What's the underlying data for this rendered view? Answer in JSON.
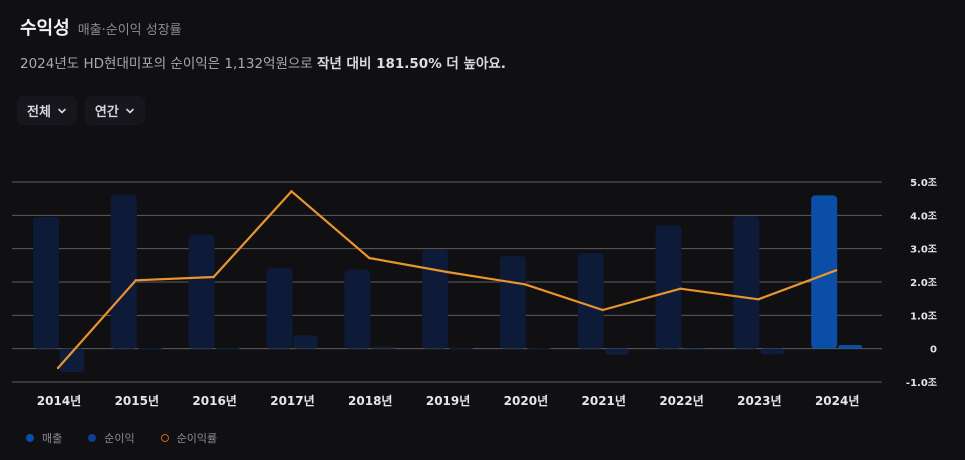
{
  "header": {
    "title": "수익성",
    "subtitle": "매출·순이익 성장률"
  },
  "summary": {
    "lead": "2024년도 HD현대미포의 순이익은 1,132억원으로 ",
    "highlight": "작년 대비 181.50% 더 높아요."
  },
  "filters": [
    {
      "label": "전체",
      "icon": "chevron-down-icon"
    },
    {
      "label": "연간",
      "icon": "chevron-down-icon"
    }
  ],
  "colors": {
    "background": "#101013",
    "revenue_bar": "#0d1a38",
    "revenue_bar_highlight": "#0a4ea8",
    "net_income_bar": "#0f1d3c",
    "growth_line": "#e8952e",
    "grid": "#5b5b63"
  },
  "chart_data": {
    "type": "bar",
    "categories": [
      "2014년",
      "2015년",
      "2016년",
      "2017년",
      "2018년",
      "2019년",
      "2020년",
      "2021년",
      "2022년",
      "2023년",
      "2024년"
    ],
    "yticks": [
      "5.0조",
      "4.0조",
      "3.0조",
      "2.0조",
      "1.0조",
      "0",
      "-1.0조"
    ],
    "ylim": [
      -1.0,
      5.0
    ],
    "y_unit": "조",
    "highlight_index": 10,
    "series": [
      {
        "name": "매출",
        "kind": "bar",
        "color": "#0a4ea8",
        "values": [
          3.95,
          4.62,
          3.42,
          2.42,
          2.37,
          2.97,
          2.78,
          2.87,
          3.7,
          3.98,
          4.6
        ]
      },
      {
        "name": "순이익",
        "kind": "bar",
        "color": "#0f1d3c",
        "values": [
          -0.7,
          0.02,
          0.03,
          0.4,
          0.06,
          0.03,
          0.02,
          -0.18,
          -0.03,
          -0.17,
          0.11
        ]
      },
      {
        "name": "순이익률",
        "kind": "line",
        "color": "#e8952e",
        "values": [
          -0.58,
          2.05,
          2.15,
          4.72,
          2.72,
          2.3,
          1.93,
          1.16,
          1.8,
          1.48,
          2.35
        ]
      }
    ],
    "grid": true,
    "legend_position": "bottom-left"
  },
  "legend": [
    {
      "label": "매출",
      "color": "#0a4ea8",
      "shape": "dot"
    },
    {
      "label": "순이익",
      "color": "#0d3f8a",
      "shape": "dot"
    },
    {
      "label": "순이익률",
      "color": "#d0601e",
      "shape": "ring"
    }
  ]
}
